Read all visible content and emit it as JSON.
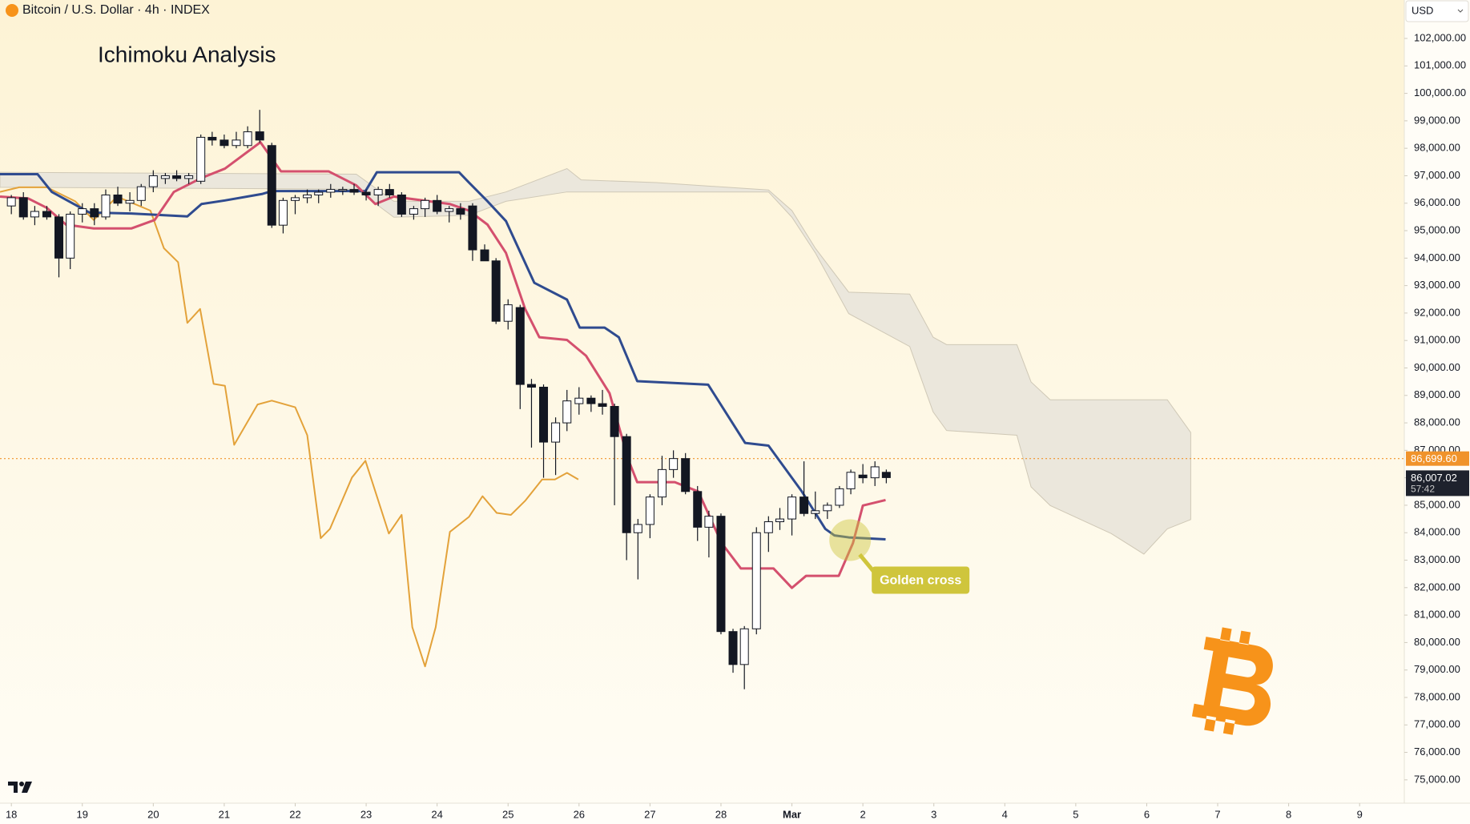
{
  "header": {
    "symbol": "Bitcoin / U.S. Dollar · 4h · INDEX",
    "currency": "USD"
  },
  "chart_data": {
    "type": "candlestick",
    "title": "Ichimoku Analysis",
    "xlim": [
      -0.16,
      19.63
    ],
    "ylim": [
      74150,
      103400
    ],
    "xticks": [
      {
        "value": 0,
        "label": "18"
      },
      {
        "value": 1,
        "label": "19"
      },
      {
        "value": 2,
        "label": "20"
      },
      {
        "value": 3,
        "label": "21"
      },
      {
        "value": 4,
        "label": "22"
      },
      {
        "value": 5,
        "label": "23"
      },
      {
        "value": 6,
        "label": "24"
      },
      {
        "value": 7,
        "label": "25"
      },
      {
        "value": 8,
        "label": "26"
      },
      {
        "value": 9,
        "label": "27"
      },
      {
        "value": 10,
        "label": "28"
      },
      {
        "value": 11,
        "label": "Mar"
      },
      {
        "value": 12,
        "label": "2"
      },
      {
        "value": 13,
        "label": "3"
      },
      {
        "value": 14,
        "label": "4"
      },
      {
        "value": 15,
        "label": "5"
      },
      {
        "value": 16,
        "label": "6"
      },
      {
        "value": 17,
        "label": "7"
      },
      {
        "value": 18,
        "label": "8"
      },
      {
        "value": 19,
        "label": "9"
      }
    ],
    "yticks": [
      {
        "value": 75000,
        "label": "75,000.00"
      },
      {
        "value": 76000,
        "label": "76,000.00"
      },
      {
        "value": 77000,
        "label": "77,000.00"
      },
      {
        "value": 78000,
        "label": "78,000.00"
      },
      {
        "value": 79000,
        "label": "79,000.00"
      },
      {
        "value": 80000,
        "label": "80,000.00"
      },
      {
        "value": 81000,
        "label": "81,000.00"
      },
      {
        "value": 82000,
        "label": "82,000.00"
      },
      {
        "value": 83000,
        "label": "83,000.00"
      },
      {
        "value": 84000,
        "label": "84,000.00"
      },
      {
        "value": 85000,
        "label": "85,000.00"
      },
      {
        "value": 86000,
        "label": "86,000.00"
      },
      {
        "value": 87000,
        "label": "87,000.00"
      },
      {
        "value": 88000,
        "label": "88,000.00"
      },
      {
        "value": 89000,
        "label": "89,000.00"
      },
      {
        "value": 90000,
        "label": "90,000.00"
      },
      {
        "value": 91000,
        "label": "91,000.00"
      },
      {
        "value": 92000,
        "label": "92,000.00"
      },
      {
        "value": 93000,
        "label": "93,000.00"
      },
      {
        "value": 94000,
        "label": "94,000.00"
      },
      {
        "value": 95000,
        "label": "95,000.00"
      },
      {
        "value": 96000,
        "label": "96,000.00"
      },
      {
        "value": 97000,
        "label": "97,000.00"
      },
      {
        "value": 98000,
        "label": "98,000.00"
      },
      {
        "value": 99000,
        "label": "99,000.00"
      },
      {
        "value": 100000,
        "label": "100,000.00"
      },
      {
        "value": 101000,
        "label": "101,000.00"
      },
      {
        "value": 102000,
        "label": "102,000.00"
      }
    ],
    "candles": {
      "x": [
        0,
        0.17,
        0.33,
        0.5,
        0.67,
        0.83,
        1,
        1.17,
        1.33,
        1.5,
        1.67,
        1.83,
        2,
        2.17,
        2.33,
        2.5,
        2.67,
        2.83,
        3,
        3.17,
        3.33,
        3.5,
        3.67,
        3.83,
        4,
        4.17,
        4.33,
        4.5,
        4.67,
        4.83,
        5,
        5.17,
        5.33,
        5.5,
        5.67,
        5.83,
        6,
        6.17,
        6.33,
        6.5,
        6.67,
        6.83,
        7,
        7.17,
        7.33,
        7.5,
        7.67,
        7.83,
        8,
        8.17,
        8.33,
        8.5,
        8.67,
        8.83,
        9,
        9.17,
        9.33,
        9.5,
        9.67,
        9.83,
        10,
        10.17,
        10.33,
        10.5,
        10.67,
        10.83,
        11,
        11.17,
        11.33,
        11.5,
        11.67,
        11.83,
        12,
        12.17,
        12.33
      ],
      "open": [
        95900,
        96200,
        95500,
        95700,
        95500,
        94000,
        95600,
        95800,
        95500,
        96300,
        96000,
        96100,
        96600,
        96900,
        97000,
        96900,
        96800,
        98400,
        98300,
        98100,
        98100,
        98600,
        98100,
        95200,
        96100,
        96200,
        96300,
        96400,
        96500,
        96500,
        96400,
        96300,
        96500,
        96300,
        95600,
        95800,
        96100,
        95700,
        95800,
        95900,
        94300,
        93900,
        91700,
        92200,
        89400,
        89300,
        87300,
        88000,
        88700,
        88900,
        88700,
        88600,
        87500,
        84000,
        84300,
        85300,
        86300,
        86700,
        85500,
        84200,
        84600,
        80400,
        79200,
        80500,
        84000,
        84400,
        84500,
        85300,
        84700,
        84800,
        85000,
        85600,
        86100,
        86000,
        86200
      ],
      "high": [
        96300,
        96400,
        95900,
        95900,
        95600,
        95700,
        96000,
        96000,
        96500,
        96600,
        96400,
        96700,
        97200,
        97100,
        97200,
        97100,
        98500,
        98600,
        98500,
        98600,
        98800,
        99400,
        98200,
        96200,
        96300,
        96500,
        96500,
        96700,
        96600,
        96700,
        96500,
        96600,
        96700,
        96400,
        95900,
        96200,
        96300,
        95900,
        96000,
        96000,
        94500,
        94000,
        92500,
        92300,
        89600,
        89400,
        88200,
        89200,
        89300,
        89000,
        89200,
        88700,
        87600,
        84500,
        85400,
        86800,
        87000,
        86900,
        85700,
        84800,
        84700,
        80500,
        80600,
        84200,
        84600,
        84900,
        85400,
        86600,
        85500,
        85100,
        85700,
        86300,
        86500,
        86600,
        86300
      ],
      "low": [
        95600,
        95400,
        95200,
        95400,
        93300,
        93600,
        95300,
        95200,
        95400,
        95900,
        95700,
        95900,
        96400,
        96700,
        96800,
        96700,
        96700,
        98100,
        98000,
        98000,
        98000,
        98200,
        95100,
        94900,
        95600,
        96000,
        96000,
        96200,
        96300,
        96300,
        96100,
        95900,
        96200,
        95500,
        95400,
        95500,
        95600,
        95300,
        95400,
        93900,
        93900,
        91600,
        91400,
        88500,
        87100,
        86000,
        86100,
        87700,
        88300,
        88400,
        88300,
        85000,
        83000,
        82300,
        83800,
        85000,
        86000,
        85400,
        83700,
        83100,
        80300,
        78900,
        78300,
        80300,
        83300,
        84100,
        83900,
        84600,
        84500,
        84500,
        84900,
        85400,
        85800,
        85700,
        85800
      ],
      "close": [
        96200,
        95500,
        95700,
        95500,
        94000,
        95600,
        95800,
        95500,
        96300,
        96000,
        96100,
        96600,
        97000,
        97000,
        96900,
        97000,
        98400,
        98300,
        98100,
        98300,
        98600,
        98300,
        95200,
        96100,
        96200,
        96300,
        96400,
        96500,
        96500,
        96400,
        96300,
        96500,
        96300,
        95600,
        95800,
        96100,
        95700,
        95800,
        95600,
        94300,
        93900,
        91700,
        92300,
        89400,
        89300,
        87300,
        88000,
        88800,
        88900,
        88700,
        88600,
        87500,
        84000,
        84300,
        85300,
        86300,
        86700,
        85500,
        84200,
        84600,
        80400,
        79200,
        80500,
        84000,
        84400,
        84500,
        85300,
        84700,
        84800,
        85000,
        85600,
        86200,
        86000,
        86400,
        86007.02
      ]
    },
    "cloud": {
      "color": "#ebe7dc",
      "x": [
        -0.16,
        4.86,
        5.39,
        6.45,
        6.97,
        7.83,
        8.03,
        9.09,
        10.67,
        11.0,
        11.33,
        11.8,
        12.66,
        12.99,
        13.18,
        14.17,
        14.37,
        14.64,
        15.5,
        15.96,
        16.29,
        16.62
      ],
      "upper": [
        97125,
        97057,
        96070,
        96070,
        96410,
        97260,
        96850,
        96750,
        96480,
        95730,
        94360,
        92760,
        92690,
        91120,
        90850,
        90850,
        89490,
        88840,
        88840,
        88840,
        88840,
        87650
      ],
      "lower": [
        96580,
        96510,
        95490,
        95560,
        96070,
        96410,
        96410,
        96410,
        96410,
        95490,
        94190,
        91980,
        90780,
        88400,
        87720,
        87550,
        85670,
        84990,
        83970,
        83220,
        84140,
        84480
      ]
    },
    "lines": [
      {
        "color": "#e3a23a",
        "x": [
          -0.16,
          0.11,
          0.5,
          0.9,
          1.16,
          1.49,
          1.96,
          2.15,
          2.35,
          2.48,
          2.66,
          2.85,
          3.01,
          3.14,
          3.47,
          3.67,
          4.0,
          4.17,
          4.36,
          4.49,
          4.8,
          4.99,
          5.32,
          5.5,
          5.65,
          5.83,
          5.98,
          6.18,
          6.45,
          6.64,
          6.84,
          7.04,
          7.24,
          7.48,
          7.66,
          7.83,
          7.99
        ],
        "values": [
          96410,
          96580,
          96580,
          96070,
          95390,
          96240,
          95730,
          94360,
          93850,
          91640,
          92150,
          89420,
          89350,
          87200,
          88670,
          88810,
          88570,
          87550,
          83800,
          84140,
          86010,
          86620,
          83970,
          84650,
          80560,
          79130,
          80560,
          84030,
          84580,
          85330,
          84720,
          84650,
          85160,
          85940,
          85940,
          86180,
          85940
        ]
      },
      {
        "color": "#2f4b8f",
        "x": [
          -0.16,
          0.37,
          0.57,
          1.1,
          1.69,
          2.48,
          2.68,
          3.01,
          3.54,
          3.67,
          4.99,
          5.15,
          6.31,
          6.45,
          6.71,
          6.97,
          7.37,
          7.83,
          8.01,
          8.36,
          8.56,
          8.82,
          9.82,
          10.34,
          10.67,
          11.14,
          11.47,
          11.6,
          11.8,
          12.32
        ],
        "values": [
          97057,
          97057,
          96410,
          95660,
          95625,
          95520,
          95970,
          96100,
          96340,
          96440,
          96440,
          97125,
          97125,
          96750,
          96070,
          95350,
          93100,
          92490,
          91470,
          91470,
          91120,
          89520,
          89390,
          87270,
          87170,
          85500,
          84140,
          83900,
          83830,
          83760
        ]
      },
      {
        "color": "#d4506e",
        "x": [
          -0.16,
          0.24,
          0.5,
          0.77,
          1.16,
          1.69,
          2.02,
          2.29,
          2.68,
          3.01,
          3.51,
          3.8,
          4.47,
          4.86,
          5.13,
          5.39,
          6.18,
          6.45,
          6.71,
          6.97,
          7.24,
          7.44,
          7.83,
          8.1,
          8.43,
          8.69,
          8.82,
          9.35,
          9.68,
          10.01,
          10.28,
          10.74,
          11.0,
          11.2,
          11.66,
          11.86,
          12.0,
          12.32
        ],
        "values": [
          96240,
          96170,
          95830,
          95220,
          95080,
          95080,
          95390,
          96410,
          96920,
          97260,
          98220,
          97160,
          97160,
          96650,
          95970,
          96240,
          95970,
          95730,
          95220,
          94190,
          92150,
          91120,
          91020,
          90440,
          89080,
          86690,
          85840,
          85840,
          85500,
          83620,
          82700,
          82700,
          81990,
          82430,
          82430,
          83620,
          84990,
          85190
        ]
      }
    ],
    "price_line": {
      "value": 86699.6,
      "label": "86,699.60",
      "color": "#f0932b"
    },
    "last_price": {
      "value": 86007.02,
      "label": "86,007.02",
      "countdown": "57:42"
    },
    "annotation": {
      "text": "Golden cross",
      "x": 11.82,
      "y": 83730,
      "color": "#cfc53c"
    }
  }
}
